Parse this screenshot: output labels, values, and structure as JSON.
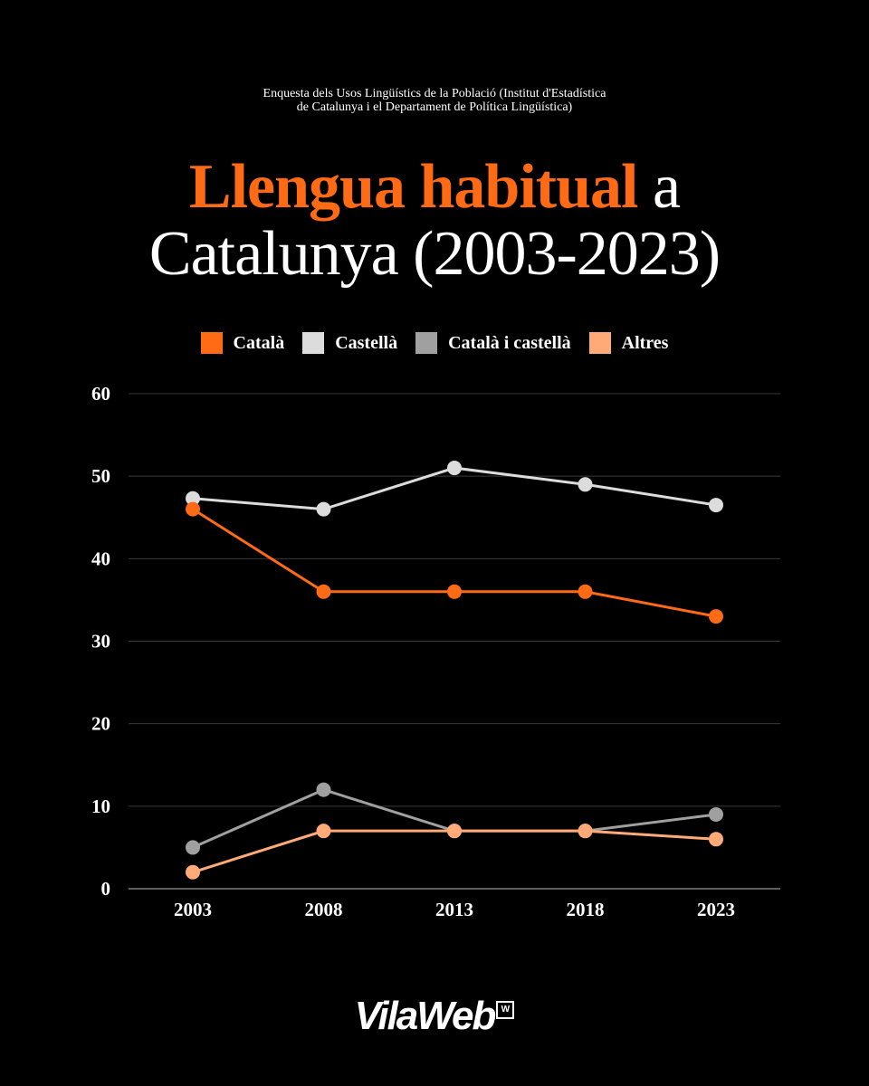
{
  "source": {
    "line1": "Enquesta dels Usos Lingüístics de la Població (Institut d'Estadística",
    "line2": "de Catalunya i el Departament de Política Lingüística)"
  },
  "title": {
    "highlight": "Llengua habitual",
    "rest1": " a",
    "line2": "Catalunya (2003-2023)"
  },
  "logo": {
    "text": "VilaWeb",
    "mark": "W"
  },
  "colors": {
    "background": "#000000",
    "accent": "#ff6a14"
  },
  "chart_data": {
    "type": "line",
    "x": [
      "2003",
      "2008",
      "2013",
      "2018",
      "2023"
    ],
    "ylim": [
      0,
      60
    ],
    "yticks": [
      0,
      10,
      20,
      30,
      40,
      50,
      60
    ],
    "grid": true,
    "legend_position": "top-center",
    "series": [
      {
        "name": "Català",
        "color": "#ff6a14",
        "values": [
          46,
          36,
          36,
          36,
          33
        ]
      },
      {
        "name": "Castellà",
        "color": "#dcdcdc",
        "values": [
          47.3,
          46,
          51,
          49,
          46.5
        ]
      },
      {
        "name": "Català i castellà",
        "color": "#a0a0a0",
        "values": [
          5,
          12,
          7,
          7,
          9
        ]
      },
      {
        "name": "Altres",
        "color": "#ffaa77",
        "values": [
          2,
          7,
          7,
          7,
          6
        ]
      }
    ]
  }
}
